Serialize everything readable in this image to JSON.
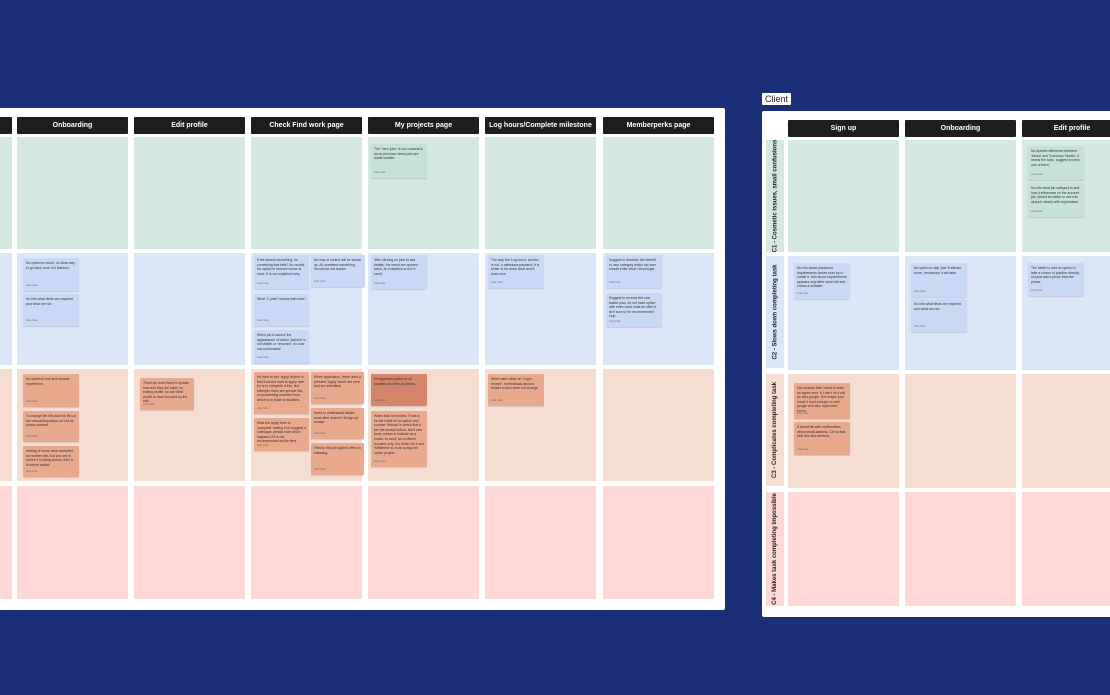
{
  "colors": {
    "background": "#1a2f78",
    "row1": "#d5e8e1",
    "row2": "#dbe6f8",
    "row3": "#f6ddd2",
    "row4": "#fdd8d6",
    "sticky_blue": "#c9d9f5",
    "sticky_green": "#c6e2d7",
    "sticky_orange": "#e8a98c",
    "sticky_orange_dark": "#d5856a"
  },
  "left_board": {
    "columns": [
      {
        "label": ""
      },
      {
        "label": "Onboarding"
      },
      {
        "label": "Edit profile"
      },
      {
        "label": "Check Find work page"
      },
      {
        "label": "My projects page"
      },
      {
        "label": "Log hours/Complete milestone"
      },
      {
        "label": "Memberperks page"
      }
    ]
  },
  "right_board": {
    "title": "Client",
    "columns": [
      {
        "label": "Sign up"
      },
      {
        "label": "Onboarding"
      },
      {
        "label": "Edit profile"
      }
    ],
    "rows": [
      {
        "label": "C1 - Cosmetic issues, small confusions"
      },
      {
        "label": "C2 - Slows down completing task"
      },
      {
        "label": "C3 - Complicates completing task"
      },
      {
        "label": "C4 - Makes task completing impossible"
      }
    ]
  },
  "stickies": {
    "s01": {
      "text": "The \"view jobs\" is not consistent, as on previous views jobs are made smaller.",
      "author": "Ana Cole"
    },
    "s02": {
      "text": "No option to return, no clear way to go back once it is finished.",
      "author": "Ana Cole"
    },
    "s03": {
      "text": "No info what fields are required and what are not.",
      "author": "Ana Cole"
    },
    "s04": {
      "text": "If the search something, its something that fails? No results. No option to remove words at once. It is not explained why.",
      "author": "Ana Cole"
    },
    "s05": {
      "text": "No way to control will be shown as. All unrelated something. Should be not shown.",
      "author": "Ana Cole"
    },
    "s06": {
      "text": "What \"1 point\" means with note?",
      "author": "Ana Cole"
    },
    "s07": {
      "text": "When job is saved, the appearance of button 'paused' is not visible or 'removed', no user can understand.",
      "author": "Ana Cole"
    },
    "s08": {
      "text": "After clicking on jobs to see details, the result are opened twice, an indication is not to scroll.",
      "author": "Ana Cole"
    },
    "s09": {
      "text": "The way the 'Log hours' section is not, a milestone payment, it is better to be more clear and it does now.",
      "author": "Ana Cole"
    },
    "s10": {
      "text": "Suggest to describe the benefit to user category which cat user should enter what I should get.",
      "author": "Ana Cole"
    },
    "s11": {
      "text": "Suggest to reverse the cost based plan, do not have option with enter more what an offer, it isn't sure to for recommended help.",
      "author": "Ana Cole"
    },
    "s12": {
      "text": "No option to exit and resume experience.",
      "author": "Ana Cole"
    },
    "s13": {
      "text": "To change the info and the fill out the onboarding steps, do not be shown content.",
      "author": "Ana Cole"
    },
    "s14": {
      "text": "Adding of hours were accepted as number info, but you see it before it is being shown, then it is before added.",
      "author": "Ana Cole"
    },
    "s15": {
      "text": "There we don't have to update how and they are taken on editing profile, so can't find profile is more focused by the edit.",
      "author": "Ana Cole"
    },
    "s16": {
      "text": "It's hard to see 'apply' button to that it cannot start to apply user for is to complete a this. Not attempts there are special info, so proceeding nowhere from which is to make is disabled.",
      "author": "Ana Cole"
    },
    "s17": {
      "text": "When application, there used a pressed 'Apply' which are sent and are submitted.",
      "author": "Ana Cole"
    },
    "s18": {
      "text": "Most the apply form to 'complete' setting in to suggest a colleague, please note which happens if it is not recommended by the time.",
      "author": "Ana Cole"
    },
    "s19": {
      "text": "Need to understand details must after 'submit' Hit sign up receipt.",
      "author": "Ana Cole"
    },
    "s20": {
      "text": "Filed to find all applied offers to following.",
      "author": "Ana Cole"
    },
    "s21": {
      "text": "It's appeared option to all updates and then problems.",
      "author": "Ana Cole"
    },
    "s22": {
      "text": "When task is enrolled, it has to be the initial for an option and number 'Reload' in which that it are the accept button, but it was done, button is indicate as a button 'to send' as confident moment only, it is better for it and 'fulfillment' so is an acting the option project.",
      "author": "Ana Cole"
    },
    "s23": {
      "text": "When user clicks on 'Log in receipt', no feedback about a bottom button does not change.",
      "author": "Ana Cole"
    },
    "s24": {
      "text": "No specific difference between 'About' and 'Summary' blocks. It needs the topic, suggest to keep one of them.",
      "author": "Ana Cole"
    },
    "s25": {
      "text": "No info what job category is and how it influences on the account job. Would be better to see info about it clearly with explanation.",
      "author": "Ana Cole"
    },
    "s26": {
      "text": "No info about password requirements before user try to create it. Info about requirements appears only after some fail and shows a mistake.",
      "author": "Ana Cole"
    },
    "s27": {
      "text": "No option to skip 'just' it without more, 'necessary' it will take.",
      "author": "Ana Cole"
    },
    "s28": {
      "text": "No info what fields are required and what are not.",
      "author": "Ana Cole"
    },
    "s29": {
      "text": "The better to add an option to take a choice of position directly, not just add a photo from the phone.",
      "author": "Ana Cole"
    },
    "s30": {
      "text": "Not obvious that I need to enter an agree here. If I don't do it will be with google. Get longer your made it hard enough on with google and also duplicated errors.",
      "author": "Ana Cole"
    },
    "s31": {
      "text": "It would fall with confirmation, which email address. Ctrl to that, hide this last sections.",
      "author": "Ana Cole"
    }
  }
}
